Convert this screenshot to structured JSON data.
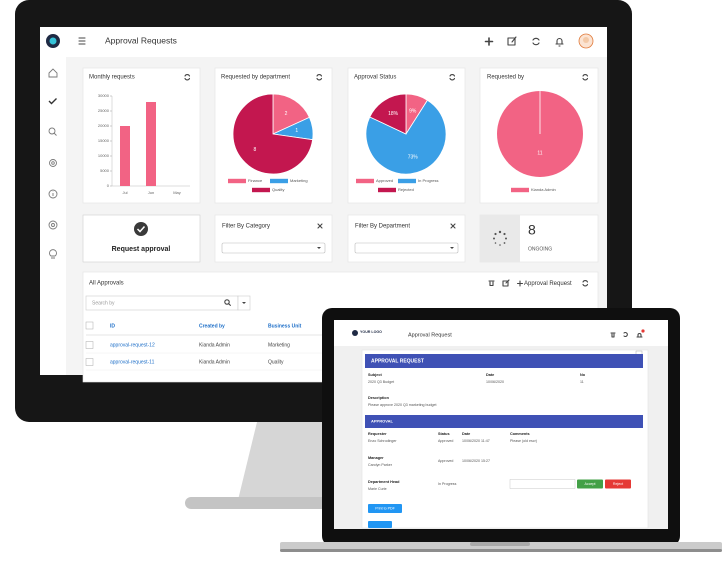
{
  "monitor": {
    "header": {
      "title": "Approval Requests"
    },
    "monthly_requests": {
      "type": "bar",
      "title": "Monthly requests",
      "categories": [
        "Jul",
        "Jun",
        "May"
      ],
      "values": [
        20000,
        28000,
        0
      ],
      "color": "#f26384",
      "ylim": [
        0,
        30000
      ],
      "yticks": [
        0,
        5000,
        10000,
        15000,
        20000,
        25000,
        30000
      ]
    },
    "by_department": {
      "type": "pie",
      "title": "Requested by department",
      "categories": [
        "Finance",
        "Marketing",
        "Quality"
      ],
      "values": [
        2,
        1,
        8
      ],
      "colors": [
        "#f26384",
        "#3a9fe6",
        "#c3174f"
      ]
    },
    "approval_status": {
      "type": "pie",
      "title": "Approval Status",
      "categories": [
        "Approved",
        "In Progress",
        "Rejected"
      ],
      "values": [
        9,
        73,
        18
      ],
      "value_labels": [
        "9%",
        "73%",
        "18%"
      ],
      "colors": [
        "#f26384",
        "#3a9fe6",
        "#c3174f"
      ]
    },
    "requested_by": {
      "type": "pie",
      "title": "Requested by",
      "categories": [
        "Kianda Admin"
      ],
      "values": [
        11
      ],
      "colors": [
        "#f26384"
      ]
    },
    "request_button": "Request approval",
    "filters": [
      {
        "title": "Filter By Category"
      },
      {
        "title": "Filter By Department"
      }
    ],
    "ongoing": {
      "count": 8,
      "label": "ONGOING"
    },
    "approvals": {
      "title": "All Approvals",
      "add_button": "Approval Request",
      "search_placeholder": "Search by",
      "columns": [
        "ID",
        "Created by",
        "Business Unit"
      ],
      "rows": [
        [
          "approval-request-12",
          "Kianda Admin",
          "Marketing"
        ],
        [
          "approval-request-11",
          "Kianda Admin",
          "Quality"
        ]
      ]
    }
  },
  "laptop": {
    "header": {
      "logo": "YOUR LOGO",
      "title": "Approval Request"
    },
    "form": {
      "title": "APPROVAL REQUEST",
      "fields": [
        {
          "label": "Subject",
          "value": "2020 Q3 Budget"
        },
        {
          "label": "Date",
          "value": "10/06/2020"
        },
        {
          "label": "No",
          "value": "11"
        }
      ],
      "description": {
        "label": "Description",
        "value": "Please approve 2020 Q3 marketing budget"
      },
      "approval": {
        "title": "APPROVAL",
        "columns": [
          "Status",
          "Date",
          "Comments"
        ],
        "approvers": [
          {
            "role": "Requester",
            "name": "Enzo Schrodinger",
            "status": "Approved",
            "date": "10/06/2020 11:47",
            "comment": "Please (old escr)"
          },
          {
            "role": "Manager",
            "name": "Carolyn Parker",
            "status": "Approved",
            "date": "10/06/2020 15:27"
          },
          {
            "role": "Department Head",
            "name": "Marie Curie",
            "status": "In Progress"
          }
        ]
      },
      "buttons": {
        "accept": "Accept",
        "reject": "Reject",
        "print": "Print to PDF"
      }
    }
  }
}
